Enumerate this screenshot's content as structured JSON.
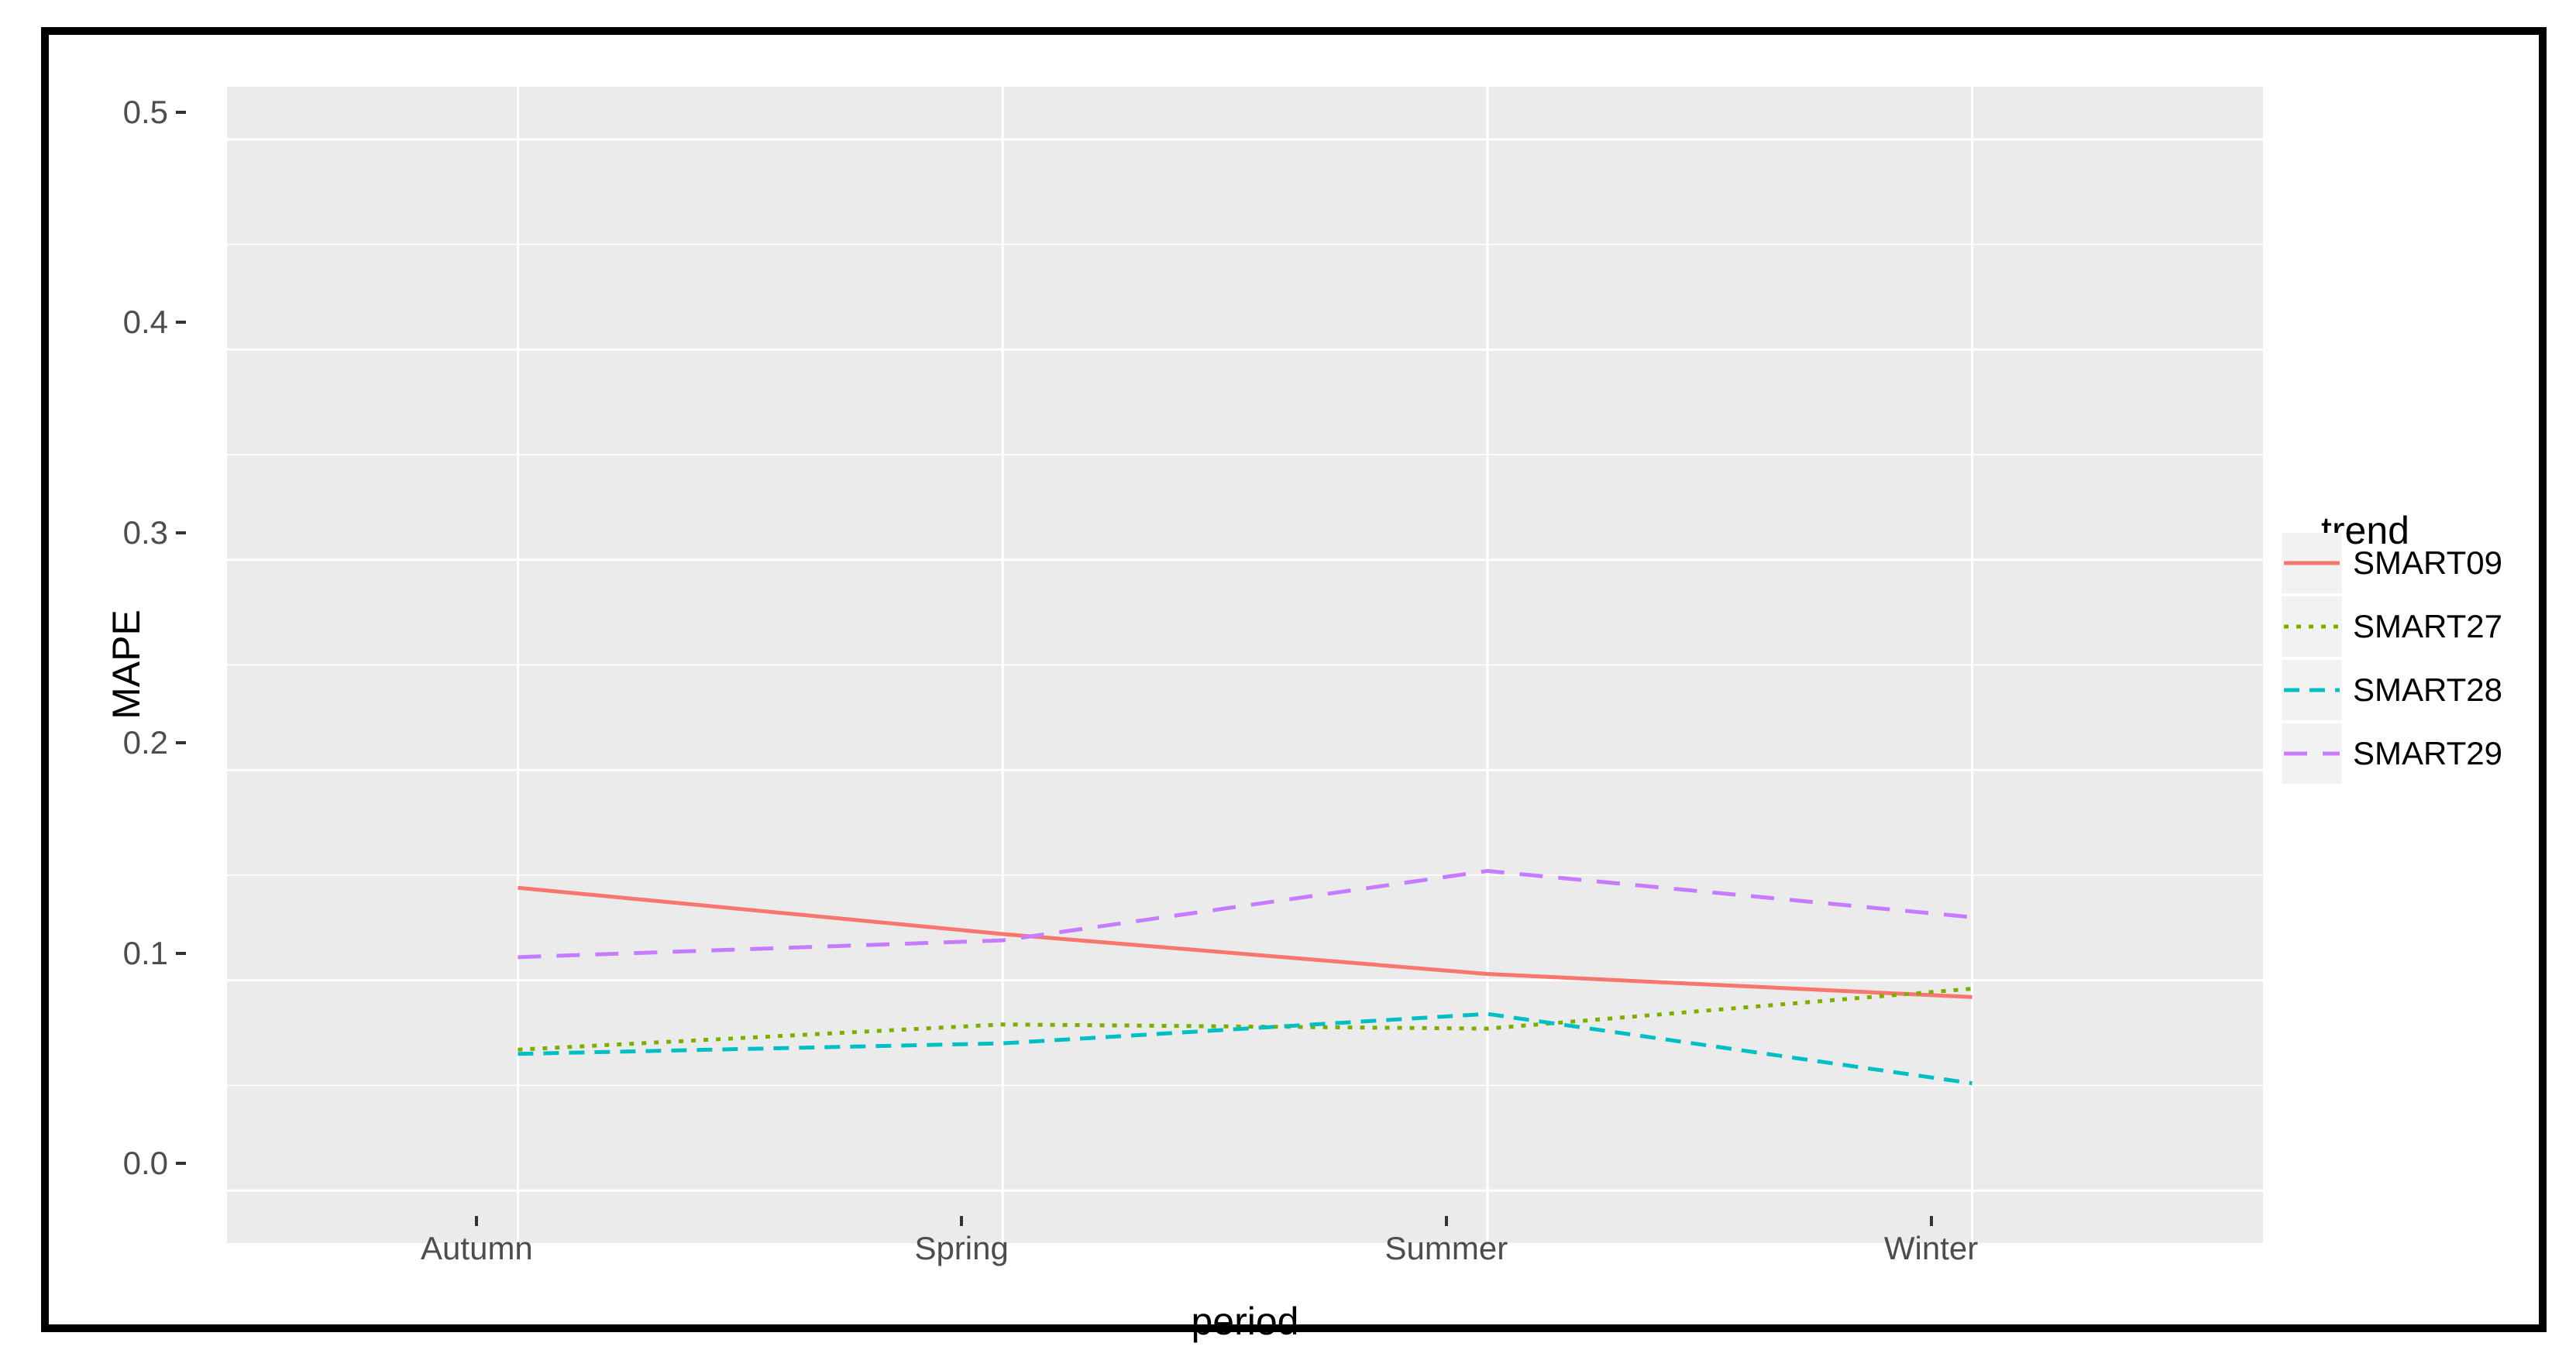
{
  "chart_data": {
    "type": "line",
    "title": "",
    "xlabel": "period",
    "ylabel": "MAPE",
    "categories": [
      "Autumn",
      "Spring",
      "Summer",
      "Winter"
    ],
    "series": [
      {
        "name": "SMART09",
        "color": "#F8766D",
        "linetype": "solid",
        "values": [
          0.144,
          0.122,
          0.103,
          0.092
        ]
      },
      {
        "name": "SMART27",
        "color": "#7CAE00",
        "linetype": "dotted",
        "values": [
          0.067,
          0.079,
          0.077,
          0.096
        ]
      },
      {
        "name": "SMART28",
        "color": "#00BFC4",
        "linetype": "dashed",
        "values": [
          0.065,
          0.07,
          0.084,
          0.051
        ]
      },
      {
        "name": "SMART29",
        "color": "#C77CFF",
        "linetype": "longdash",
        "values": [
          0.111,
          0.119,
          0.152,
          0.13
        ]
      }
    ],
    "ylim": [
      0,
      0.5
    ],
    "ytick_labels": [
      "0.0",
      "0.1",
      "0.2",
      "0.3",
      "0.4",
      "0.5"
    ],
    "ytick_values": [
      0.0,
      0.1,
      0.2,
      0.3,
      0.4,
      0.5
    ],
    "yminor_values": [
      0.05,
      0.15,
      0.25,
      0.35,
      0.45
    ],
    "legend_title": "trend",
    "legend_position": "right",
    "grid": "major+minor",
    "panel_background": "#EBEBEB",
    "gridline_color": "#FFFFFF",
    "legend_key_background": "#F2F2F2",
    "tick_label_color": "#4D4D4D"
  }
}
